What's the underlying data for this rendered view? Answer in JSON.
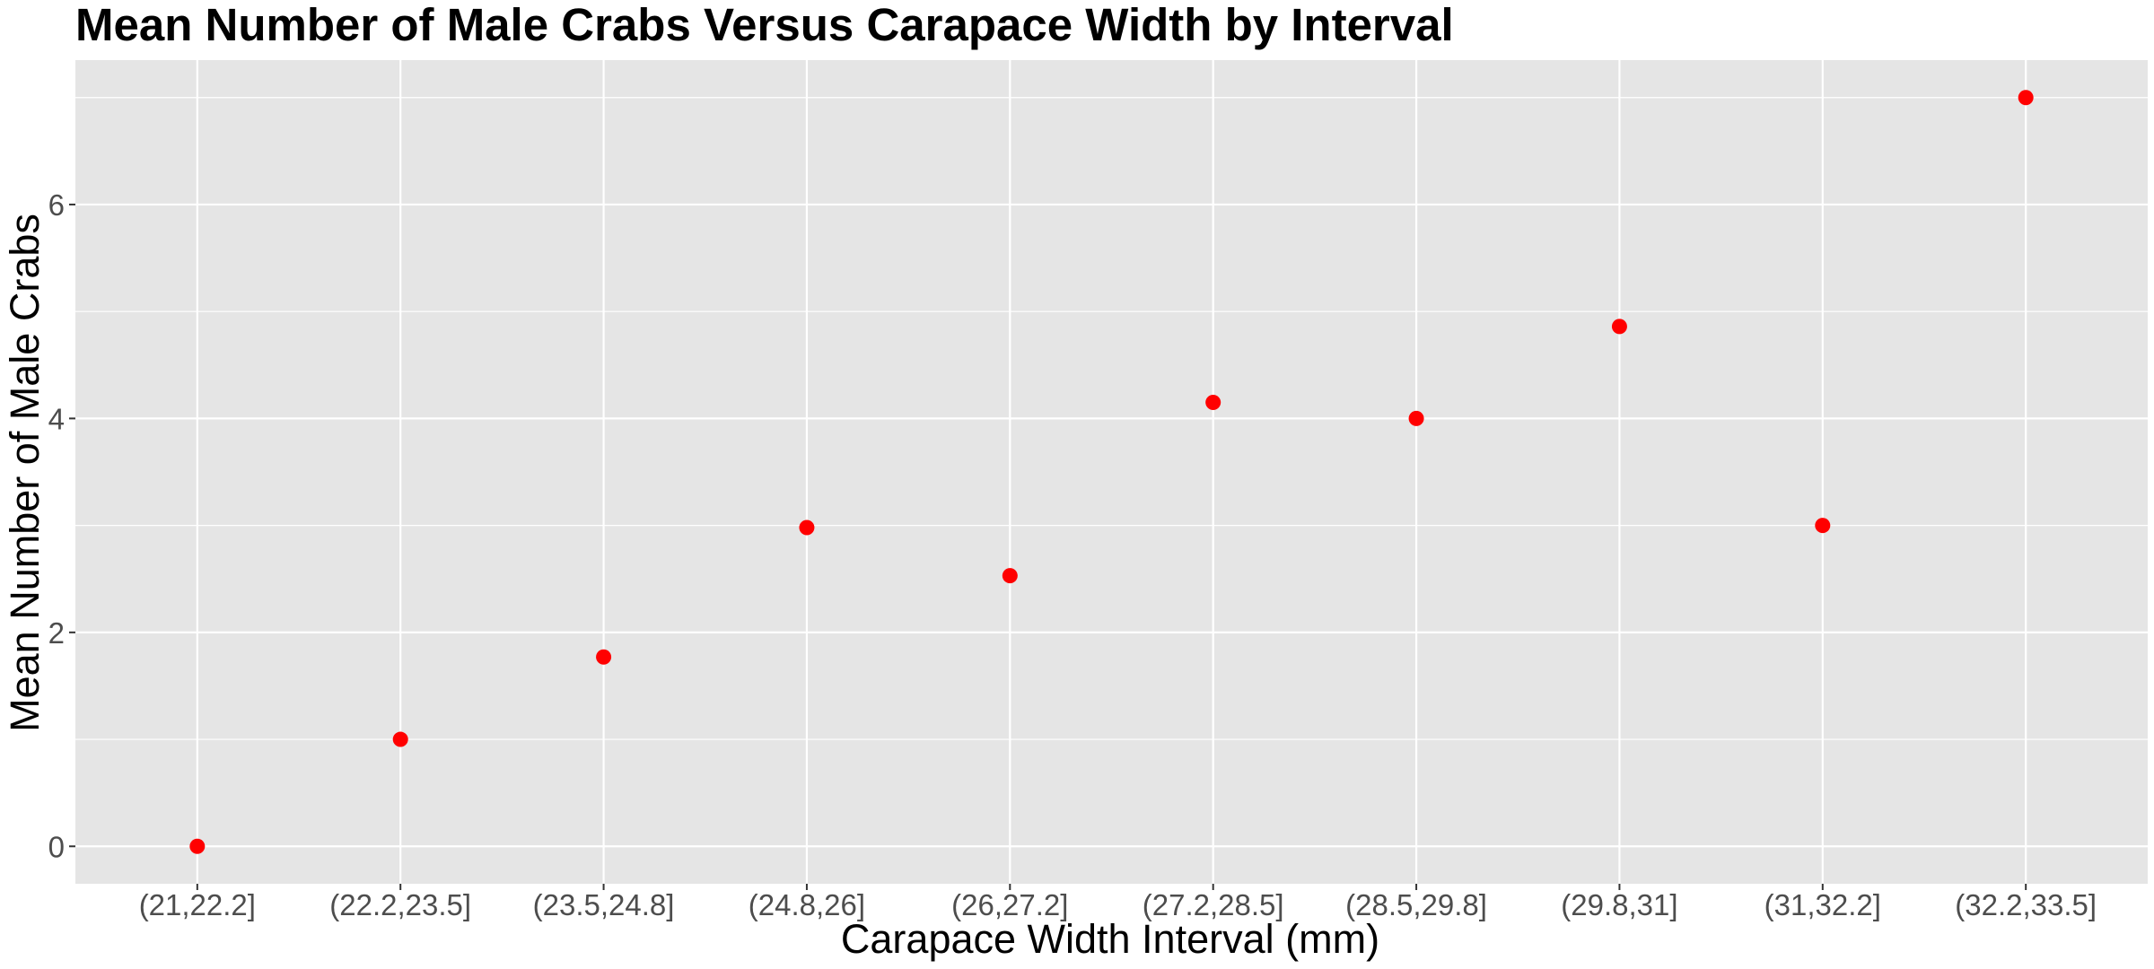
{
  "chart_data": {
    "type": "scatter",
    "title": "Mean Number of Male Crabs Versus Carapace Width by Interval",
    "xlabel": "Carapace Width Interval (mm)",
    "ylabel": "Mean Number of Male Crabs",
    "categories": [
      "(21,22.2]",
      "(22.2,23.5]",
      "(23.5,24.8]",
      "(24.8,26]",
      "(26,27.2]",
      "(27.2,28.5]",
      "(28.5,29.8]",
      "(29.8,31]",
      "(31,32.2]",
      "(32.2,33.5]"
    ],
    "values": [
      0,
      1,
      1.77,
      2.98,
      2.53,
      4.15,
      4.0,
      4.86,
      3.0,
      7.0
    ],
    "y_ticks": [
      0,
      2,
      4,
      6
    ],
    "y_tick_labels": [
      "0",
      "2",
      "4",
      "6"
    ],
    "ylim": [
      -0.35,
      7.35
    ],
    "grid": true,
    "panel_background": "#e5e5e5",
    "grid_color": "#ffffff",
    "point_color": "#ff0000"
  }
}
